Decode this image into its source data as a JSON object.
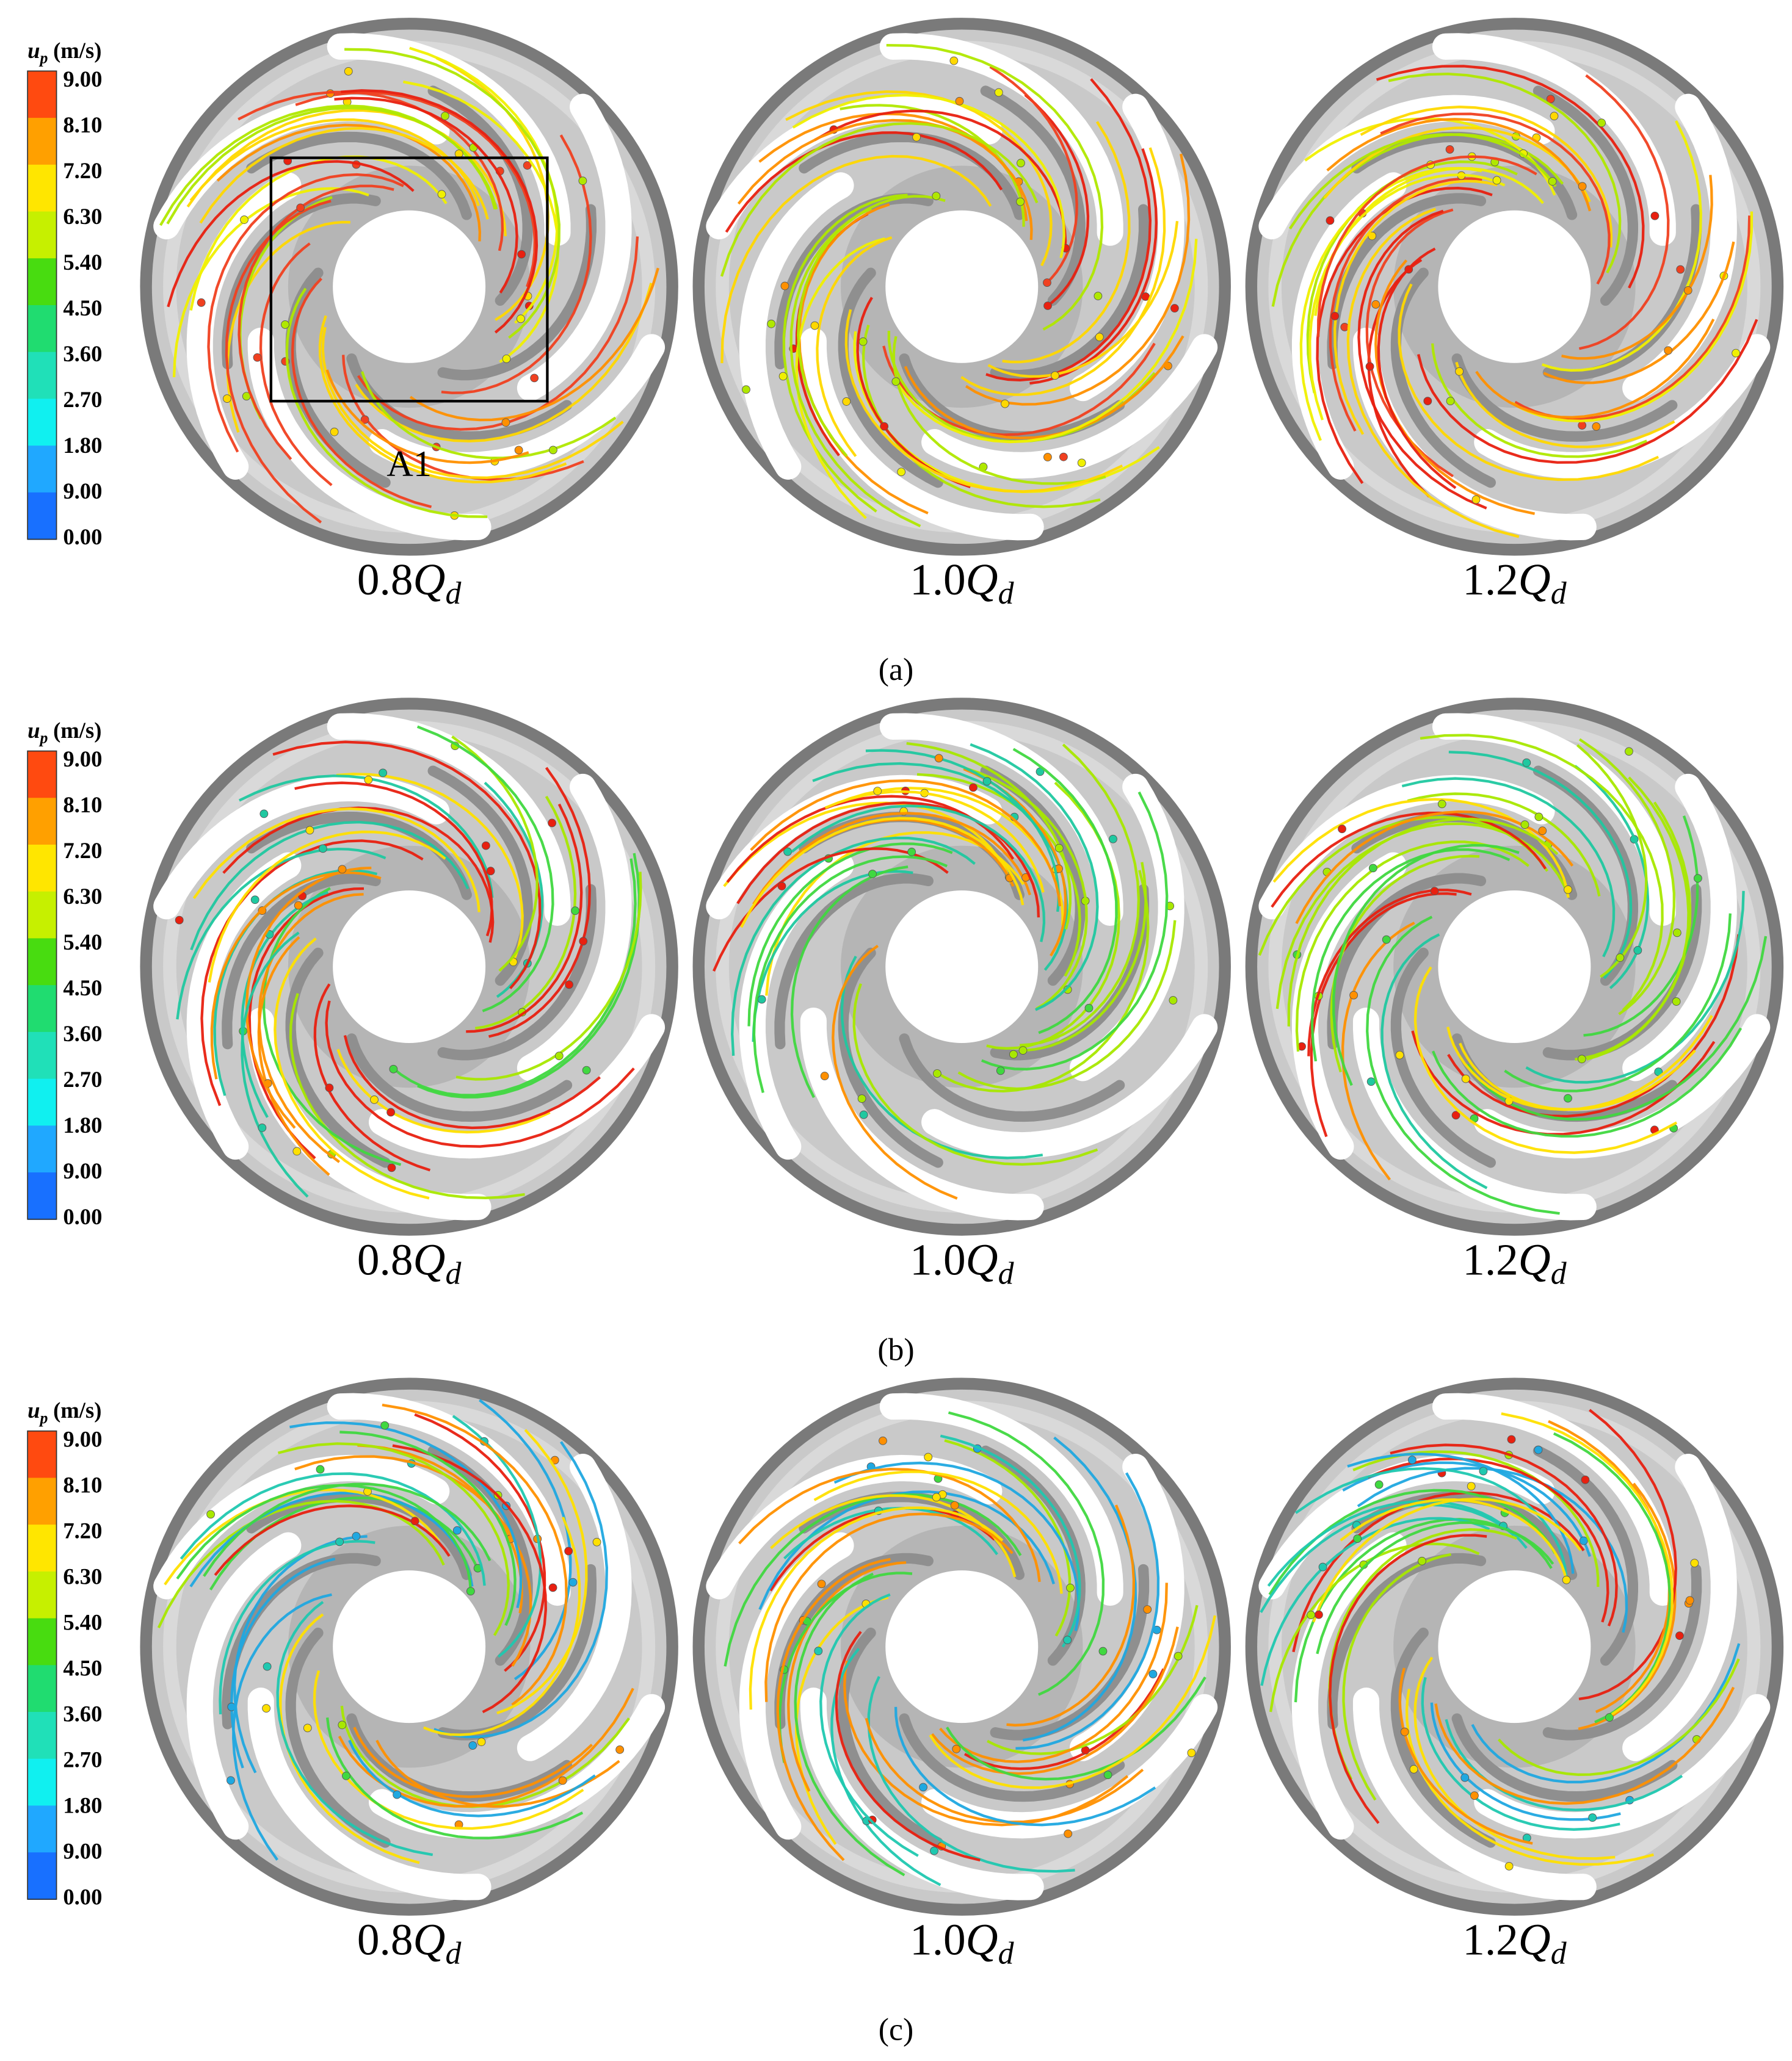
{
  "panels": [
    {
      "label": "(a)",
      "legend": {
        "title": {
          "symbol": "u",
          "subscript": "p",
          "unit": "(m/s)"
        },
        "labels": [
          "9.00",
          "8.10",
          "7.20",
          "6.30",
          "5.40",
          "4.50",
          "3.60",
          "2.70",
          "1.80",
          "9.00",
          "0.00"
        ]
      },
      "cases": [
        {
          "number": "0.8",
          "symbol": "Q",
          "subscript": "d"
        },
        {
          "number": "1.0",
          "symbol": "Q",
          "subscript": "d"
        },
        {
          "number": "1.2",
          "symbol": "Q",
          "subscript": "d"
        }
      ],
      "annotation": "A1"
    },
    {
      "label": "(b)",
      "legend": {
        "title": {
          "symbol": "u",
          "subscript": "p",
          "unit": "(m/s)"
        },
        "labels": [
          "9.00",
          "8.10",
          "7.20",
          "6.30",
          "5.40",
          "4.50",
          "3.60",
          "2.70",
          "1.80",
          "9.00",
          "0.00"
        ]
      },
      "cases": [
        {
          "number": "0.8",
          "symbol": "Q",
          "subscript": "d"
        },
        {
          "number": "1.0",
          "symbol": "Q",
          "subscript": "d"
        },
        {
          "number": "1.2",
          "symbol": "Q",
          "subscript": "d"
        }
      ]
    },
    {
      "label": "(c)",
      "legend": {
        "title": {
          "symbol": "u",
          "subscript": "p",
          "unit": "(m/s)"
        },
        "labels": [
          "9.00",
          "8.10",
          "7.20",
          "6.30",
          "5.40",
          "4.50",
          "3.60",
          "2.70",
          "1.80",
          "9.00",
          "0.00"
        ]
      },
      "cases": [
        {
          "number": "0.8",
          "symbol": "Q",
          "subscript": "d"
        },
        {
          "number": "1.0",
          "symbol": "Q",
          "subscript": "d"
        },
        {
          "number": "1.2",
          "symbol": "Q",
          "subscript": "d"
        }
      ]
    }
  ]
}
